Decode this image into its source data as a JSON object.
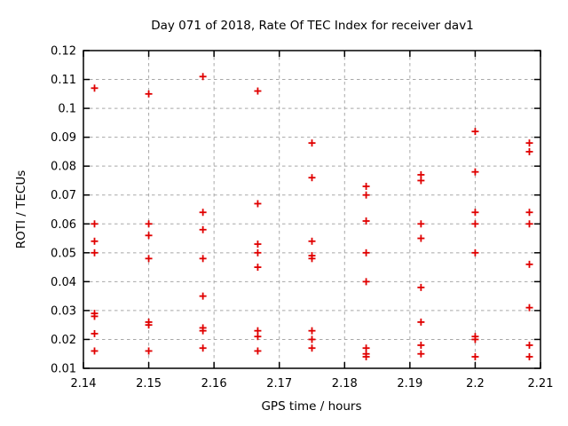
{
  "window": {
    "title": "Day 071 of 2018, Rate Of TEC Index for receiver dav1"
  },
  "colors": {
    "marker": "#e00000",
    "grid": "#a8a8a8",
    "axis": "#000000",
    "background": "#ffffff"
  },
  "chart_data": {
    "type": "scatter",
    "title": "Day 071 of 2018, Rate Of TEC Index for receiver dav1",
    "xlabel": "GPS time / hours",
    "ylabel": "ROTI / TECUs",
    "xlim": [
      2.14,
      2.21
    ],
    "ylim": [
      0.01,
      0.12
    ],
    "xticks": [
      2.14,
      2.15,
      2.16,
      2.17,
      2.18,
      2.19,
      2.2,
      2.21
    ],
    "xtick_labels": [
      "2.14",
      "2.15",
      "2.16",
      "2.17",
      "2.18",
      "2.19",
      "2.2",
      "2.21"
    ],
    "yticks": [
      0.01,
      0.02,
      0.03,
      0.04,
      0.05,
      0.06,
      0.07,
      0.08,
      0.09,
      0.1,
      0.11,
      0.12
    ],
    "ytick_labels": [
      "0.01",
      "0.02",
      "0.03",
      "0.04",
      "0.05",
      "0.06",
      "0.07",
      "0.08",
      "0.09",
      "0.1",
      "0.11",
      "0.12"
    ],
    "grid": true,
    "legend_position": "none",
    "marker": "plus",
    "series": [
      {
        "name": "ROTI",
        "columns": [
          {
            "t": 2.1417,
            "values": [
              0.107,
              0.06,
              0.054,
              0.05,
              0.029,
              0.028,
              0.022,
              0.016
            ]
          },
          {
            "t": 2.15,
            "values": [
              0.105,
              0.06,
              0.056,
              0.048,
              0.026,
              0.025,
              0.016
            ]
          },
          {
            "t": 2.1583,
            "values": [
              0.111,
              0.064,
              0.058,
              0.048,
              0.035,
              0.024,
              0.023,
              0.017
            ]
          },
          {
            "t": 2.1667,
            "values": [
              0.106,
              0.067,
              0.053,
              0.05,
              0.045,
              0.023,
              0.021,
              0.016
            ]
          },
          {
            "t": 2.175,
            "values": [
              0.088,
              0.076,
              0.054,
              0.049,
              0.048,
              0.023,
              0.02,
              0.017
            ]
          },
          {
            "t": 2.1833,
            "values": [
              0.073,
              0.07,
              0.061,
              0.05,
              0.04,
              0.017,
              0.015,
              0.014
            ]
          },
          {
            "t": 2.1917,
            "values": [
              0.077,
              0.075,
              0.06,
              0.055,
              0.038,
              0.026,
              0.018,
              0.015
            ]
          },
          {
            "t": 2.2,
            "values": [
              0.092,
              0.078,
              0.064,
              0.06,
              0.05,
              0.021,
              0.02,
              0.014
            ]
          },
          {
            "t": 2.2083,
            "values": [
              0.088,
              0.085,
              0.064,
              0.06,
              0.046,
              0.031,
              0.018,
              0.014
            ]
          }
        ]
      }
    ]
  }
}
